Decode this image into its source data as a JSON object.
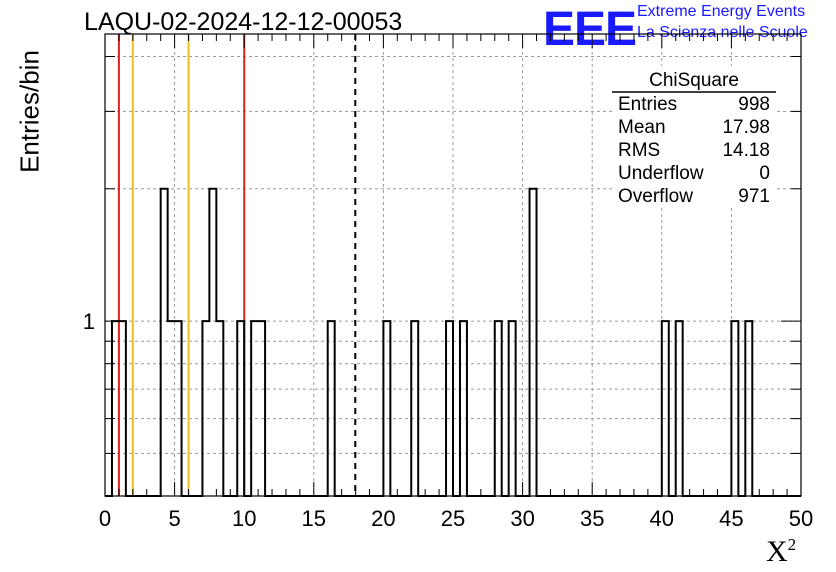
{
  "chart_data": {
    "type": "bar",
    "title": "LAQU-02-2024-12-12-00053",
    "xlabel": "X²",
    "ylabel": "Entries/bin",
    "xlim": [
      0,
      50
    ],
    "ylim_log": [
      0.4,
      4.5
    ],
    "log_y": true,
    "grid": true,
    "bin_width": 0.5,
    "bins": [
      {
        "x0": 0.5,
        "v": 1
      },
      {
        "x0": 1.0,
        "v": 1
      },
      {
        "x0": 4.0,
        "v": 2
      },
      {
        "x0": 4.5,
        "v": 1
      },
      {
        "x0": 5.0,
        "v": 1
      },
      {
        "x0": 7.0,
        "v": 1
      },
      {
        "x0": 7.5,
        "v": 2
      },
      {
        "x0": 8.0,
        "v": 1
      },
      {
        "x0": 9.5,
        "v": 1
      },
      {
        "x0": 10.5,
        "v": 1
      },
      {
        "x0": 11.0,
        "v": 1
      },
      {
        "x0": 16.0,
        "v": 1
      },
      {
        "x0": 20.0,
        "v": 1
      },
      {
        "x0": 22.0,
        "v": 1
      },
      {
        "x0": 24.5,
        "v": 1
      },
      {
        "x0": 25.5,
        "v": 1
      },
      {
        "x0": 28.0,
        "v": 1
      },
      {
        "x0": 29.0,
        "v": 1
      },
      {
        "x0": 30.5,
        "v": 2
      },
      {
        "x0": 40.0,
        "v": 1
      },
      {
        "x0": 41.0,
        "v": 1
      },
      {
        "x0": 45.0,
        "v": 1
      },
      {
        "x0": 46.0,
        "v": 1
      }
    ],
    "vlines": [
      {
        "x": 1,
        "color": "#dd2222",
        "style": "solid"
      },
      {
        "x": 2,
        "color": "#f0c020",
        "style": "solid"
      },
      {
        "x": 6,
        "color": "#f0c020",
        "style": "solid"
      },
      {
        "x": 10,
        "color": "#dd2222",
        "style": "solid"
      },
      {
        "x": 17.98,
        "color": "#000000",
        "style": "dashed"
      }
    ],
    "x_ticks": [
      "0",
      "5",
      "10",
      "15",
      "20",
      "25",
      "30",
      "35",
      "40",
      "45",
      "50"
    ],
    "y_tick_label": "1",
    "stats": {
      "name": "ChiSquare",
      "rows": [
        {
          "k": "Entries",
          "v": "998"
        },
        {
          "k": "Mean",
          "v": "17.98"
        },
        {
          "k": "RMS",
          "v": "14.18"
        },
        {
          "k": "Underflow",
          "v": "0"
        },
        {
          "k": "Overflow",
          "v": "971"
        }
      ]
    }
  },
  "logo": {
    "mark": "EEE",
    "line1": "Extreme Energy Events",
    "line2": "La Scienza nelle Scuole",
    "color": "#1a1aff"
  }
}
